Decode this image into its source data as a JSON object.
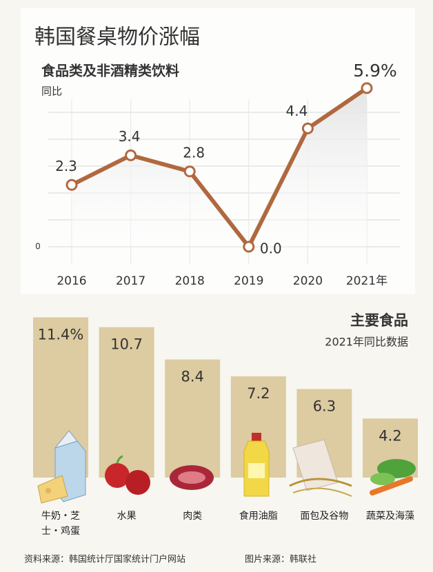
{
  "title": "韩国餐桌物价涨幅",
  "chart_data": [
    {
      "type": "line",
      "title": "食品类及非酒精类饮料",
      "subtitle": "同比",
      "categories": [
        "2016",
        "2017",
        "2018",
        "2019",
        "2020",
        "2021年"
      ],
      "values": [
        2.3,
        3.4,
        2.8,
        0.0,
        4.4,
        5.9
      ],
      "value_labels": [
        "2.3",
        "3.4",
        "2.8",
        "0.0",
        "4.4",
        "5.9%"
      ],
      "color": "#b0683f",
      "ylim": [
        0,
        6
      ],
      "yticks": [
        0
      ],
      "grid_lines": [
        1,
        2,
        3,
        4,
        5
      ],
      "grid": true
    },
    {
      "type": "bar",
      "title": "主要食品",
      "subtitle": "2021年同比数据",
      "categories": [
        "牛奶・芝士・鸡蛋",
        "水果",
        "肉类",
        "食用油脂",
        "面包及谷物",
        "蔬菜及海藻"
      ],
      "values": [
        11.4,
        10.7,
        8.4,
        7.2,
        6.3,
        4.2
      ],
      "value_labels": [
        "11.4%",
        "10.7",
        "8.4",
        "7.2",
        "6.3",
        "4.2"
      ],
      "color": "#ddcba1"
    }
  ],
  "source": "资料来源：韩国统计厅国家统计门户网站",
  "image_source": "图片来源：韩联社"
}
